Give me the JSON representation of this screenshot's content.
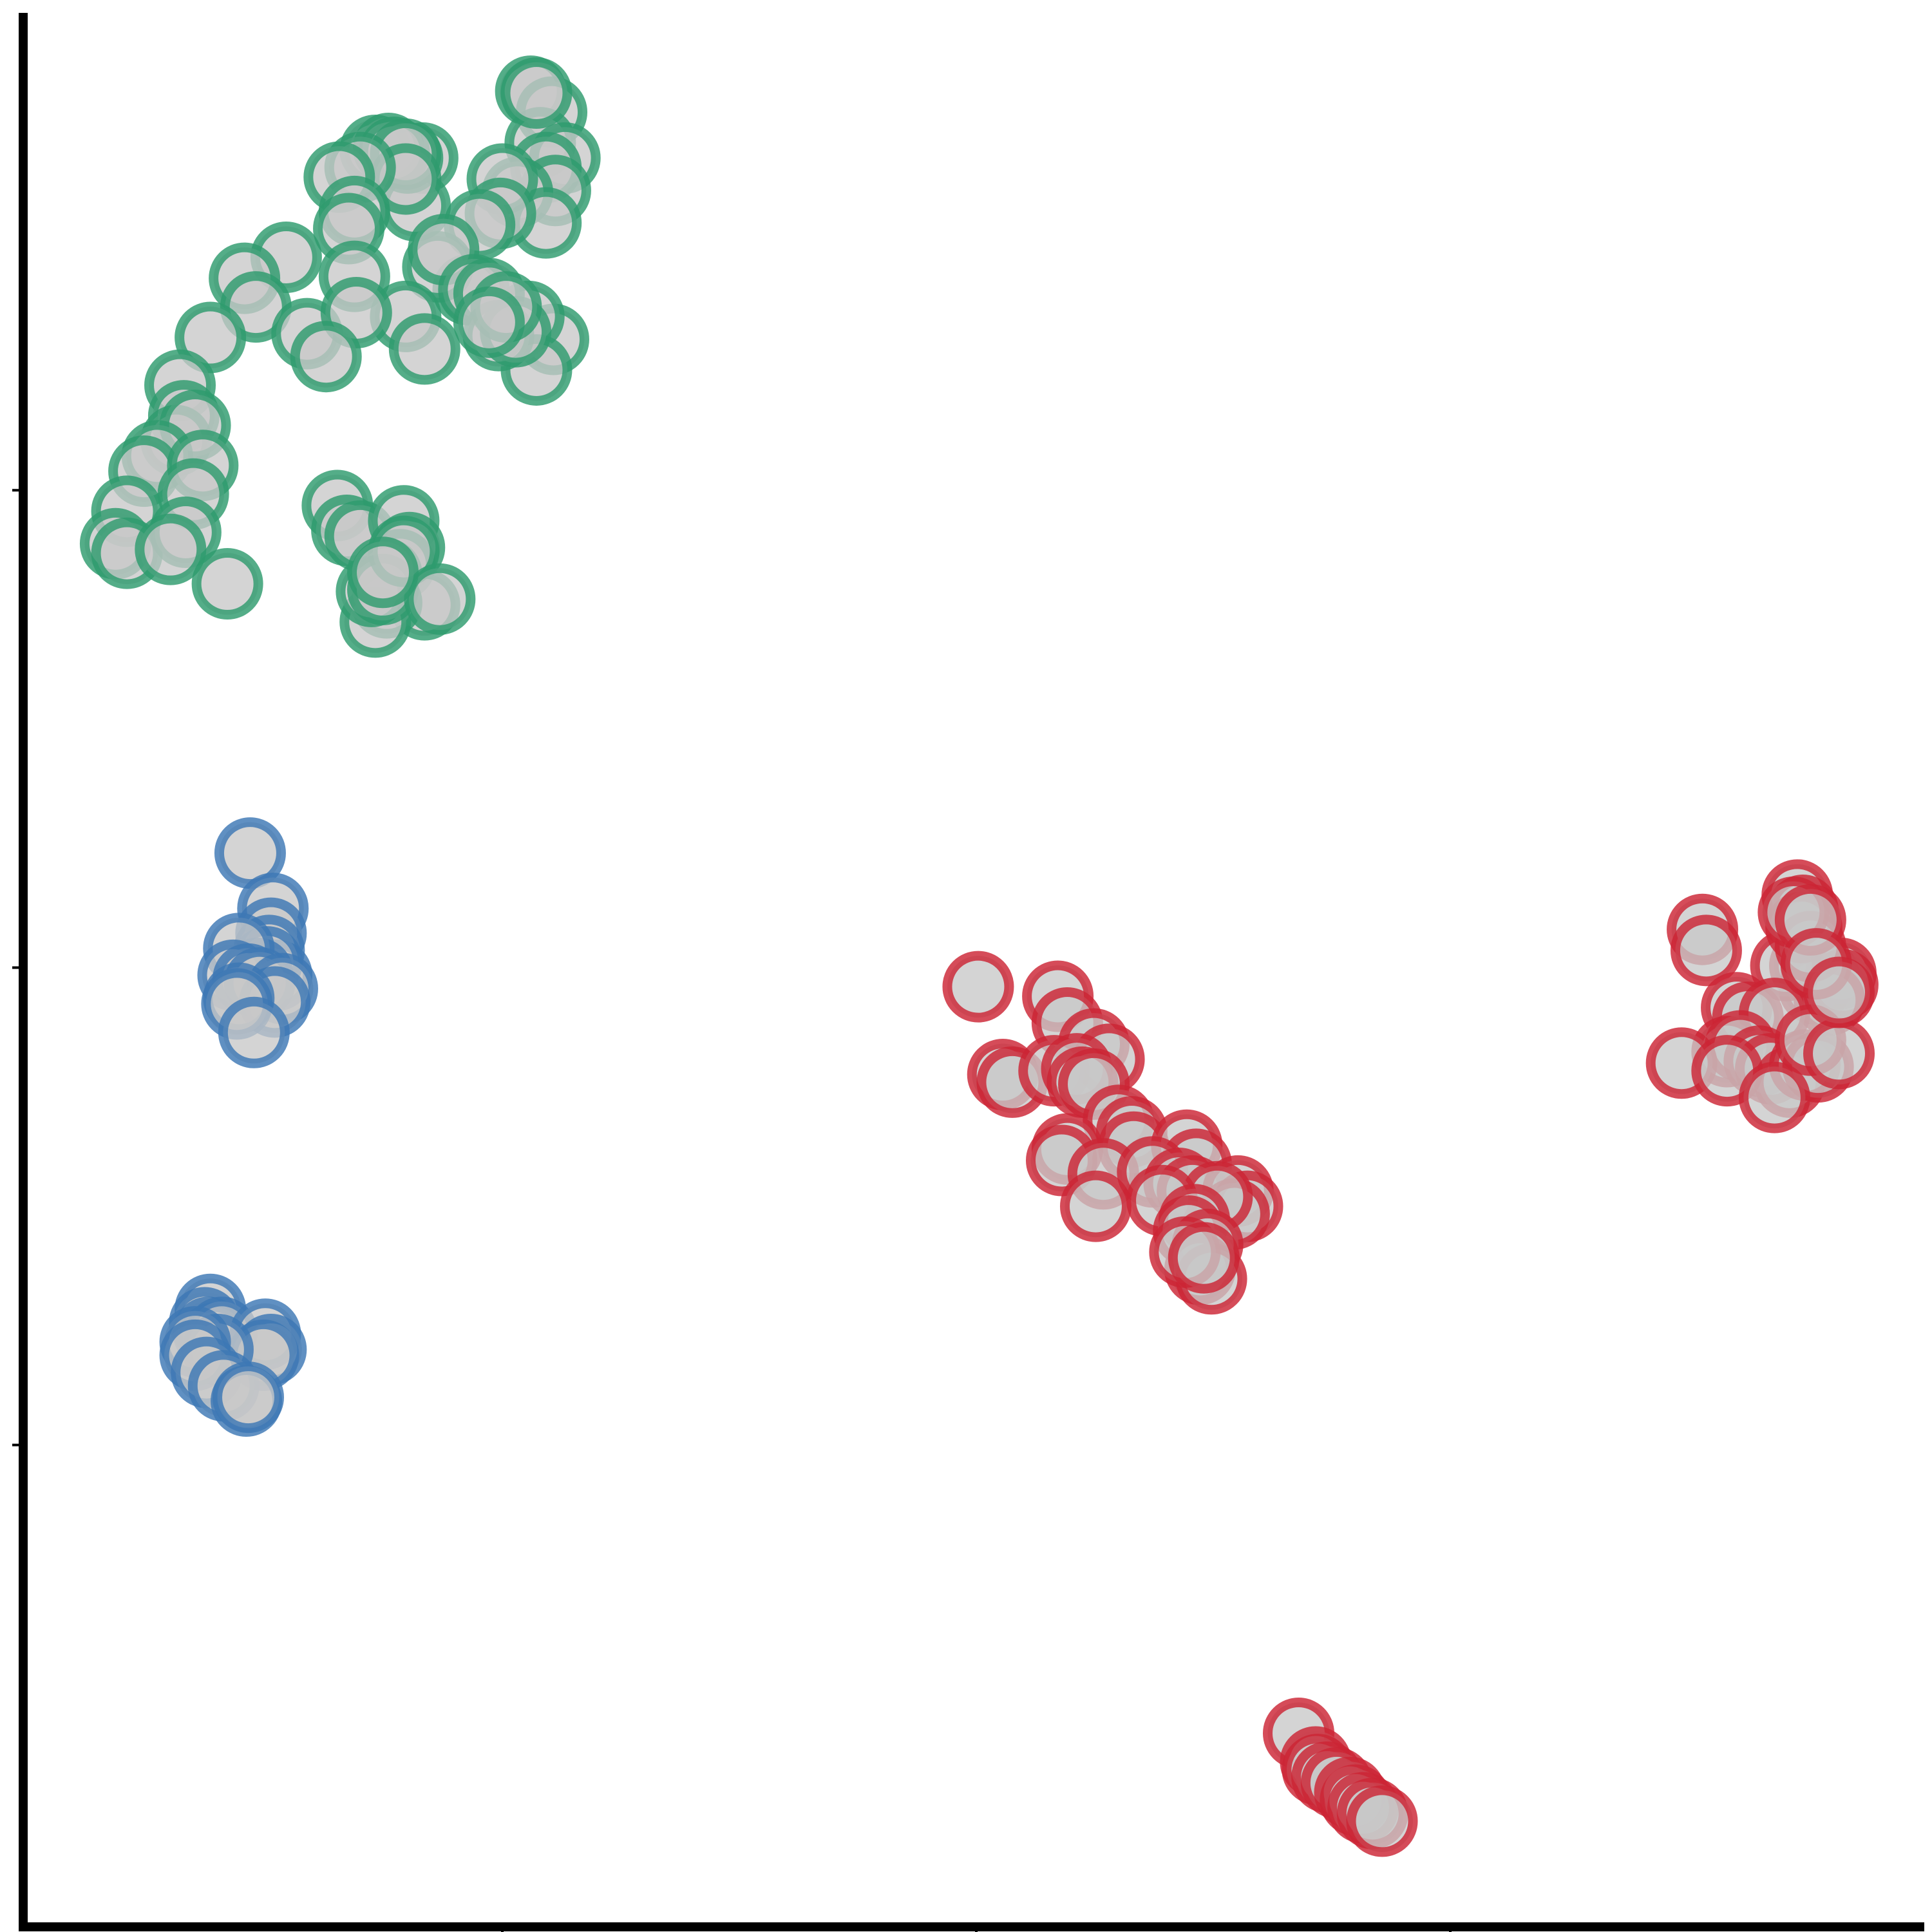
{
  "chart_data": {
    "type": "scatter",
    "title": "",
    "xlabel": "",
    "ylabel": "",
    "xlim": [
      0,
      1
    ],
    "ylim": [
      0,
      1
    ],
    "grid": false,
    "legend": "none",
    "marker_fill": "#c8c8c8",
    "series": [
      {
        "color": "#2e9b6e",
        "points": [
          [
            0.265,
            0.959
          ],
          [
            0.276,
            0.948
          ],
          [
            0.27,
            0.932
          ],
          [
            0.283,
            0.924
          ],
          [
            0.273,
            0.919
          ],
          [
            0.278,
            0.907
          ],
          [
            0.268,
            0.958
          ],
          [
            0.258,
            0.906
          ],
          [
            0.273,
            0.89
          ],
          [
            0.277,
            0.829
          ],
          [
            0.264,
            0.841
          ],
          [
            0.268,
            0.813
          ],
          [
            0.25,
            0.913
          ],
          [
            0.249,
            0.895
          ],
          [
            0.238,
            0.889
          ],
          [
            0.232,
            0.855
          ],
          [
            0.216,
            0.867
          ],
          [
            0.208,
            0.924
          ],
          [
            0.204,
            0.899
          ],
          [
            0.2,
            0.924
          ],
          [
            0.183,
            0.928
          ],
          [
            0.19,
            0.929
          ],
          [
            0.193,
            0.927
          ],
          [
            0.199,
            0.926
          ],
          [
            0.199,
            0.913
          ],
          [
            0.175,
            0.919
          ],
          [
            0.164,
            0.914
          ],
          [
            0.172,
            0.896
          ],
          [
            0.169,
            0.887
          ],
          [
            0.172,
            0.862
          ],
          [
            0.199,
            0.841
          ],
          [
            0.209,
            0.824
          ],
          [
            0.219,
            0.876
          ],
          [
            0.235,
            0.855
          ],
          [
            0.243,
            0.853
          ],
          [
            0.248,
            0.831
          ],
          [
            0.257,
            0.833
          ],
          [
            0.252,
            0.846
          ],
          [
            0.243,
            0.838
          ],
          [
            0.136,
            0.872
          ],
          [
            0.114,
            0.861
          ],
          [
            0.12,
            0.846
          ],
          [
            0.147,
            0.832
          ],
          [
            0.173,
            0.843
          ],
          [
            0.157,
            0.82
          ],
          [
            0.096,
            0.83
          ],
          [
            0.08,
            0.805
          ],
          [
            0.082,
            0.789
          ],
          [
            0.078,
            0.776
          ],
          [
            0.088,
            0.784
          ],
          [
            0.068,
            0.768
          ],
          [
            0.061,
            0.76
          ],
          [
            0.052,
            0.739
          ],
          [
            0.046,
            0.722
          ],
          [
            0.052,
            0.717
          ],
          [
            0.092,
            0.763
          ],
          [
            0.087,
            0.748
          ],
          [
            0.083,
            0.728
          ],
          [
            0.075,
            0.719
          ],
          [
            0.105,
            0.701
          ],
          [
            0.163,
            0.742
          ],
          [
            0.168,
            0.729
          ],
          [
            0.175,
            0.726
          ],
          [
            0.198,
            0.734
          ],
          [
            0.201,
            0.72
          ],
          [
            0.196,
            0.711
          ],
          [
            0.189,
            0.706
          ],
          [
            0.209,
            0.69
          ],
          [
            0.189,
            0.691
          ],
          [
            0.183,
            0.681
          ],
          [
            0.181,
            0.697
          ],
          [
            0.187,
            0.698
          ],
          [
            0.198,
            0.718
          ],
          [
            0.217,
            0.693
          ],
          [
            0.187,
            0.707
          ]
        ]
      },
      {
        "color": "#3d78b5",
        "points": [
          [
            0.117,
            0.56
          ],
          [
            0.129,
            0.531
          ],
          [
            0.128,
            0.518
          ],
          [
            0.127,
            0.509
          ],
          [
            0.131,
            0.496
          ],
          [
            0.126,
            0.503
          ],
          [
            0.121,
            0.497
          ],
          [
            0.111,
            0.51
          ],
          [
            0.108,
            0.496
          ],
          [
            0.116,
            0.494
          ],
          [
            0.122,
            0.492
          ],
          [
            0.134,
            0.489
          ],
          [
            0.13,
            0.482
          ],
          [
            0.111,
            0.484
          ],
          [
            0.11,
            0.481
          ],
          [
            0.119,
            0.466
          ],
          [
            0.096,
            0.321
          ],
          [
            0.093,
            0.314
          ],
          [
            0.095,
            0.309
          ],
          [
            0.098,
            0.306
          ],
          [
            0.102,
            0.309
          ],
          [
            0.125,
            0.308
          ],
          [
            0.128,
            0.3
          ],
          [
            0.124,
            0.297
          ],
          [
            0.1,
            0.3
          ],
          [
            0.088,
            0.304
          ],
          [
            0.088,
            0.297
          ],
          [
            0.094,
            0.288
          ],
          [
            0.103,
            0.281
          ],
          [
            0.115,
            0.273
          ],
          [
            0.116,
            0.275
          ]
        ]
      },
      {
        "color": "#cc2535",
        "points": [
          [
            0.501,
            0.49
          ],
          [
            0.543,
            0.485
          ],
          [
            0.548,
            0.471
          ],
          [
            0.562,
            0.46
          ],
          [
            0.57,
            0.452
          ],
          [
            0.514,
            0.444
          ],
          [
            0.519,
            0.44
          ],
          [
            0.541,
            0.446
          ],
          [
            0.553,
            0.447
          ],
          [
            0.556,
            0.44
          ],
          [
            0.562,
            0.439
          ],
          [
            0.575,
            0.42
          ],
          [
            0.582,
            0.414
          ],
          [
            0.583,
            0.406
          ],
          [
            0.548,
            0.405
          ],
          [
            0.545,
            0.399
          ],
          [
            0.567,
            0.392
          ],
          [
            0.611,
            0.407
          ],
          [
            0.616,
            0.397
          ],
          [
            0.593,
            0.393
          ],
          [
            0.607,
            0.387
          ],
          [
            0.614,
            0.383
          ],
          [
            0.638,
            0.383
          ],
          [
            0.643,
            0.375
          ],
          [
            0.636,
            0.371
          ],
          [
            0.627,
            0.38
          ],
          [
            0.598,
            0.378
          ],
          [
            0.615,
            0.368
          ],
          [
            0.612,
            0.362
          ],
          [
            0.622,
            0.355
          ],
          [
            0.618,
            0.342
          ],
          [
            0.624,
            0.337
          ],
          [
            0.61,
            0.351
          ],
          [
            0.563,
            0.375
          ],
          [
            0.62,
            0.348
          ],
          [
            0.883,
            0.52
          ],
          [
            0.885,
            0.509
          ],
          [
            0.933,
            0.538
          ],
          [
            0.936,
            0.53
          ],
          [
            0.938,
            0.521
          ],
          [
            0.937,
            0.501
          ],
          [
            0.943,
            0.499
          ],
          [
            0.947,
            0.496
          ],
          [
            0.942,
            0.489
          ],
          [
            0.956,
            0.497
          ],
          [
            0.957,
            0.491
          ],
          [
            0.95,
            0.483
          ],
          [
            0.927,
            0.501
          ],
          [
            0.901,
            0.479
          ],
          [
            0.907,
            0.474
          ],
          [
            0.921,
            0.476
          ],
          [
            0.896,
            0.456
          ],
          [
            0.903,
            0.459
          ],
          [
            0.913,
            0.451
          ],
          [
            0.919,
            0.447
          ],
          [
            0.929,
            0.44
          ],
          [
            0.937,
            0.449
          ],
          [
            0.944,
            0.448
          ],
          [
            0.94,
            0.462
          ],
          [
            0.955,
            0.455
          ],
          [
            0.872,
            0.45
          ],
          [
            0.896,
            0.446
          ],
          [
            0.921,
            0.432
          ],
          [
            0.935,
            0.521
          ],
          [
            0.94,
            0.511
          ],
          [
            0.931,
            0.529
          ],
          [
            0.94,
            0.525
          ],
          [
            0.943,
            0.502
          ],
          [
            0.955,
            0.487
          ],
          [
            0.67,
            0.099
          ],
          [
            0.679,
            0.084
          ],
          [
            0.68,
            0.08
          ],
          [
            0.685,
            0.076
          ],
          [
            0.69,
            0.073
          ],
          [
            0.697,
            0.068
          ],
          [
            0.7,
            0.064
          ],
          [
            0.704,
            0.06
          ],
          [
            0.709,
            0.057
          ],
          [
            0.714,
            0.053
          ]
        ]
      }
    ]
  }
}
